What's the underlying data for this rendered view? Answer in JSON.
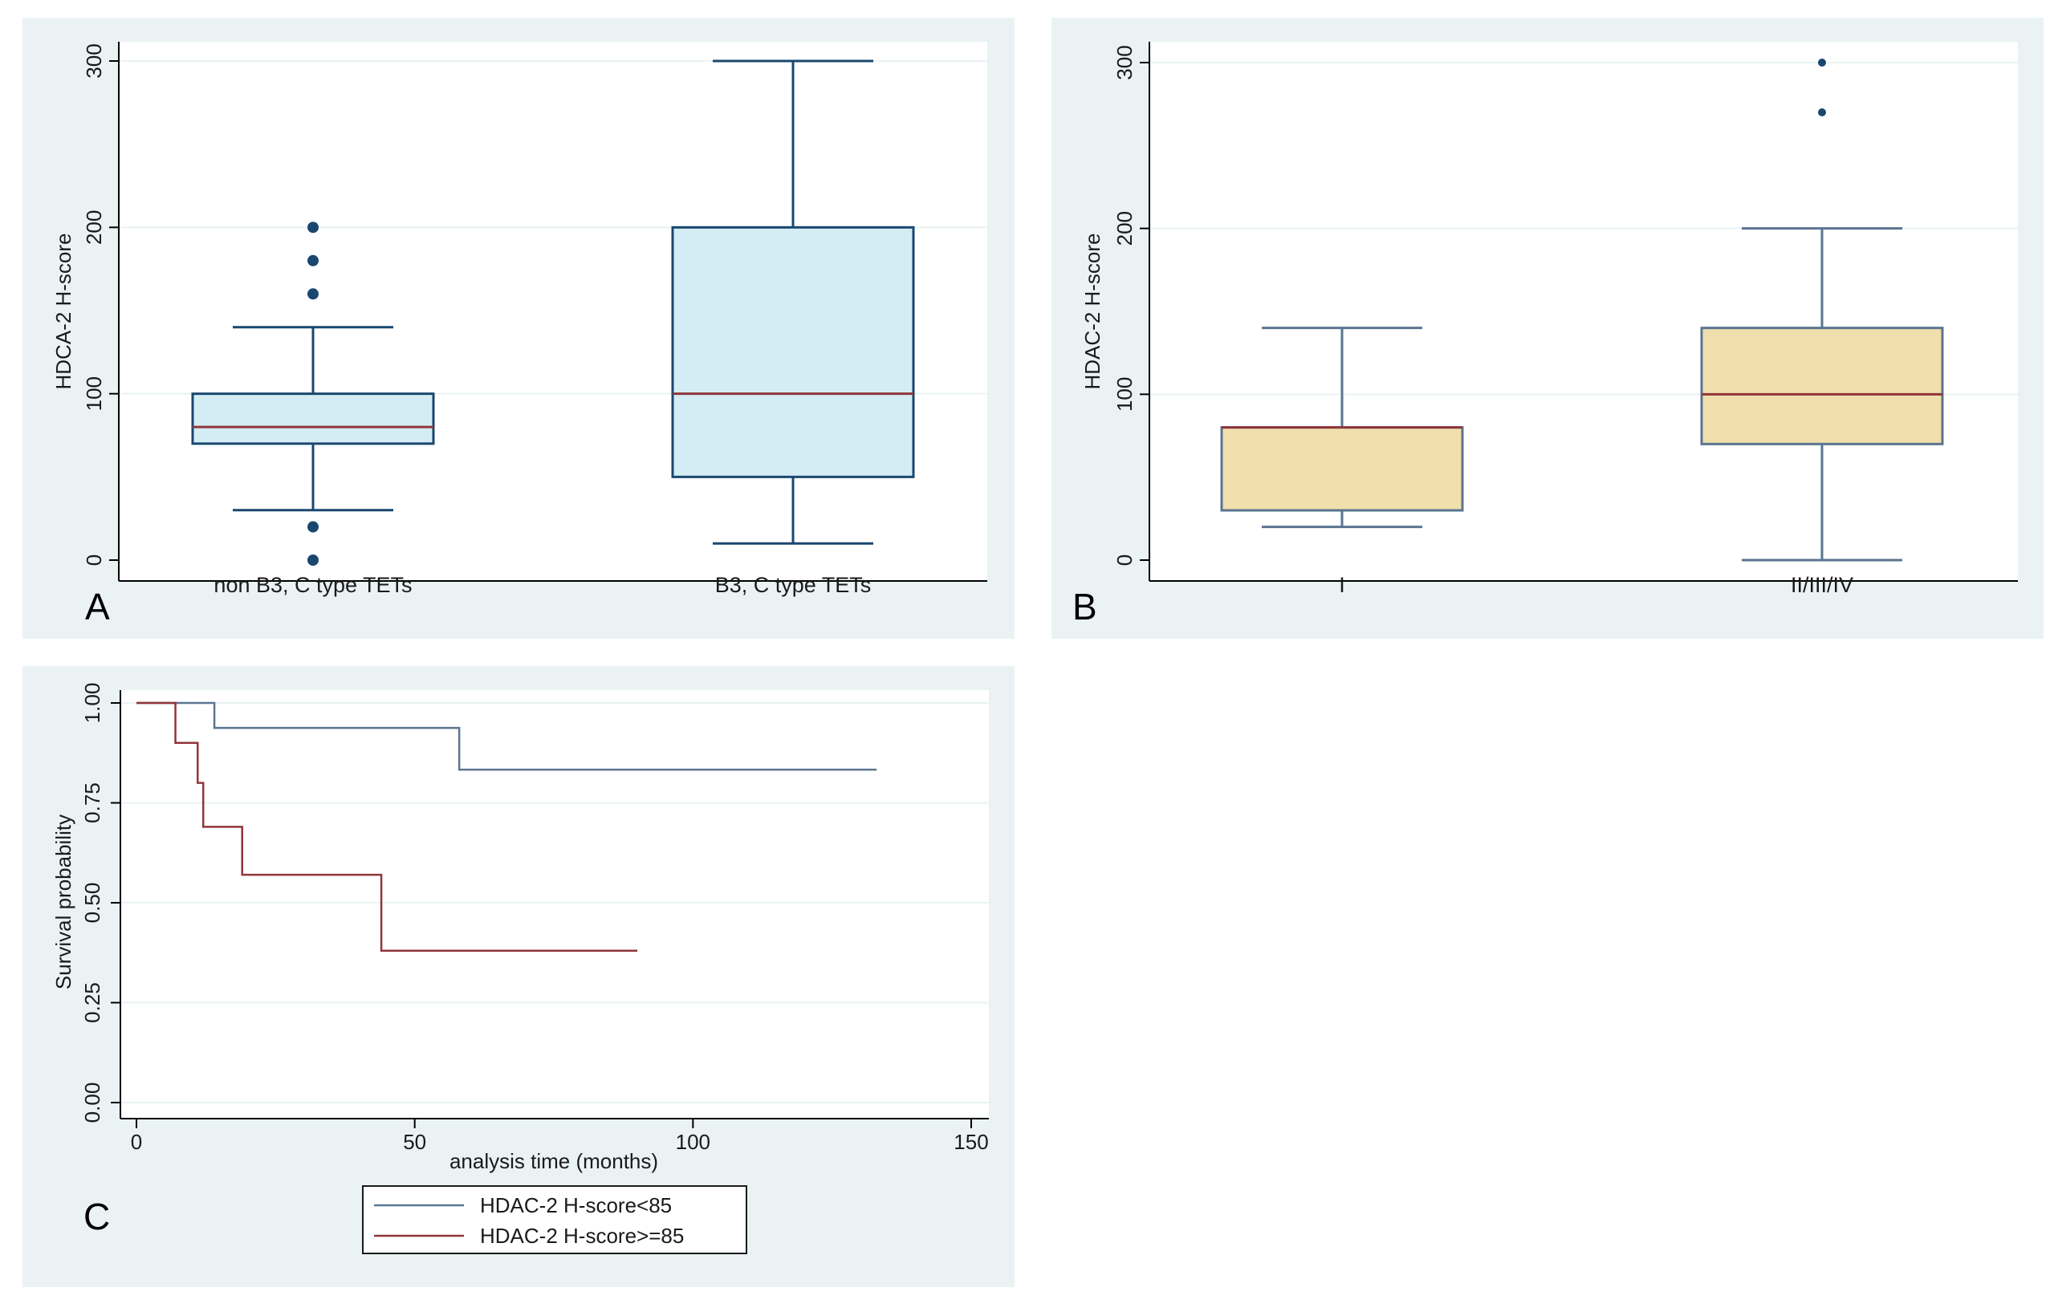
{
  "figure": {
    "panel_letters": [
      "A",
      "B",
      "C"
    ]
  },
  "colors": {
    "panel_background": "#eaf2f3",
    "box_a_fill": "#d4ecf3",
    "box_a_stroke": "#1a476f",
    "box_b_fill": "#f0dfac",
    "box_b_stroke": "#5a7591",
    "median": "#90353b",
    "outlier": "#1a476f",
    "km_low": "#5a7591",
    "km_high": "#90353b"
  },
  "chart_data": [
    {
      "type": "box",
      "panel": "A",
      "ylabel": "HDCA-2 H-score",
      "xlabel": "",
      "ylim": [
        0,
        300
      ],
      "yticks": [
        "0",
        "100",
        "200",
        "300"
      ],
      "grid": true,
      "categories": [
        "non B3, C type TETs",
        "B3, C type TETs"
      ],
      "boxes": [
        {
          "name": "non B3, C type TETs",
          "whisker_low": 30,
          "q1": 70,
          "median": 80,
          "q3": 100,
          "whisker_high": 140,
          "outliers": [
            0,
            20,
            160,
            180,
            200
          ]
        },
        {
          "name": "B3, C type TETs",
          "whisker_low": 10,
          "q1": 50,
          "median": 100,
          "q3": 200,
          "whisker_high": 300,
          "outliers": []
        }
      ]
    },
    {
      "type": "box",
      "panel": "B",
      "ylabel": "HDAC-2 H-score",
      "xlabel": "",
      "ylim": [
        0,
        300
      ],
      "yticks": [
        "0",
        "100",
        "200",
        "300"
      ],
      "grid": true,
      "categories": [
        "I",
        "II/III/IV"
      ],
      "boxes": [
        {
          "name": "I",
          "whisker_low": 20,
          "q1": 30,
          "median": 80,
          "q3": 80,
          "whisker_high": 140,
          "outliers": []
        },
        {
          "name": "II/III/IV",
          "whisker_low": 0,
          "q1": 70,
          "median": 100,
          "q3": 140,
          "whisker_high": 200,
          "outliers": [
            270,
            300
          ]
        }
      ]
    },
    {
      "type": "line",
      "subtype": "kaplan-meier",
      "panel": "C",
      "xlabel": "analysis time (months)",
      "ylabel": "Survival probability",
      "xlim": [
        0,
        150
      ],
      "ylim": [
        0,
        1
      ],
      "xticks": [
        "0",
        "50",
        "100",
        "150"
      ],
      "yticks": [
        "0.00",
        "0.25",
        "0.50",
        "0.75",
        "1.00"
      ],
      "grid": true,
      "legend_position": "bottom",
      "series": [
        {
          "name": "HDAC-2 H-score<85",
          "steps": [
            [
              0,
              1.0
            ],
            [
              14,
              0.9375
            ],
            [
              58,
              0.833
            ],
            [
              133,
              0.833
            ]
          ]
        },
        {
          "name": "HDAC-2 H-score>=85",
          "steps": [
            [
              0,
              1.0
            ],
            [
              7,
              0.9
            ],
            [
              11,
              0.8
            ],
            [
              12,
              0.69
            ],
            [
              19,
              0.57
            ],
            [
              44,
              0.38
            ],
            [
              90,
              0.38
            ]
          ]
        }
      ]
    }
  ]
}
